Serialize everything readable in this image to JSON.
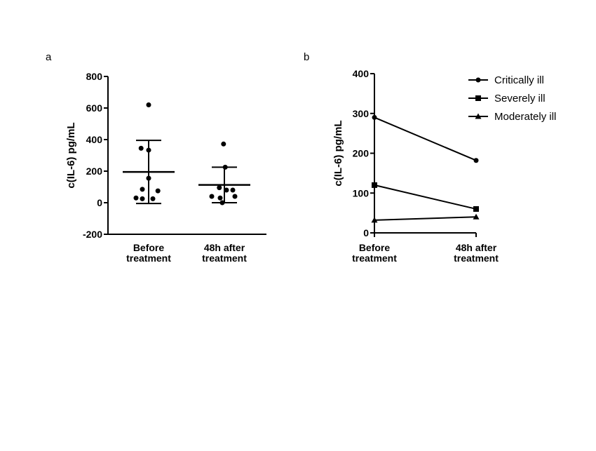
{
  "chart_data": [
    {
      "type": "scatter",
      "panel_label": "a",
      "ylabel": "c(IL-6) pg/mL",
      "ylim": [
        -200,
        800
      ],
      "yticks": [
        -200,
        0,
        200,
        400,
        600,
        800
      ],
      "categories": [
        "Before\ntreatment",
        "48h after\ntreatment"
      ],
      "groups": [
        {
          "category": "Before\ntreatment",
          "points": [
            {
              "offset": 0.0,
              "y": 620
            },
            {
              "offset": -0.18,
              "y": 345
            },
            {
              "offset": 0.0,
              "y": 333
            },
            {
              "offset": 0.0,
              "y": 155
            },
            {
              "offset": -0.15,
              "y": 85
            },
            {
              "offset": 0.22,
              "y": 75
            },
            {
              "offset": -0.3,
              "y": 30
            },
            {
              "offset": -0.15,
              "y": 25
            },
            {
              "offset": 0.1,
              "y": 25
            }
          ],
          "mean": 195,
          "error_upper": 395,
          "error_lower": -5
        },
        {
          "category": "48h after\ntreatment",
          "points": [
            {
              "offset": -0.02,
              "y": 372
            },
            {
              "offset": 0.02,
              "y": 225
            },
            {
              "offset": -0.12,
              "y": 95
            },
            {
              "offset": 0.05,
              "y": 80
            },
            {
              "offset": 0.2,
              "y": 80
            },
            {
              "offset": -0.3,
              "y": 40
            },
            {
              "offset": -0.1,
              "y": 30
            },
            {
              "offset": 0.25,
              "y": 40
            },
            {
              "offset": -0.05,
              "y": 0
            }
          ],
          "mean": 113,
          "error_upper": 225,
          "error_lower": 0
        }
      ]
    },
    {
      "type": "line",
      "panel_label": "b",
      "ylabel": "c(IL-6) pg/mL",
      "ylim": [
        0,
        400
      ],
      "yticks": [
        0,
        100,
        200,
        300,
        400
      ],
      "categories": [
        "Before\ntreatment",
        "48h after\ntreatment"
      ],
      "legend_position": "top-right",
      "series": [
        {
          "name": "Critically ill",
          "marker": "circle",
          "values": [
            290,
            182
          ]
        },
        {
          "name": "Severely ill",
          "marker": "square",
          "values": [
            120,
            60
          ]
        },
        {
          "name": "Moderately ill",
          "marker": "triangle",
          "values": [
            32,
            40
          ]
        }
      ]
    }
  ]
}
